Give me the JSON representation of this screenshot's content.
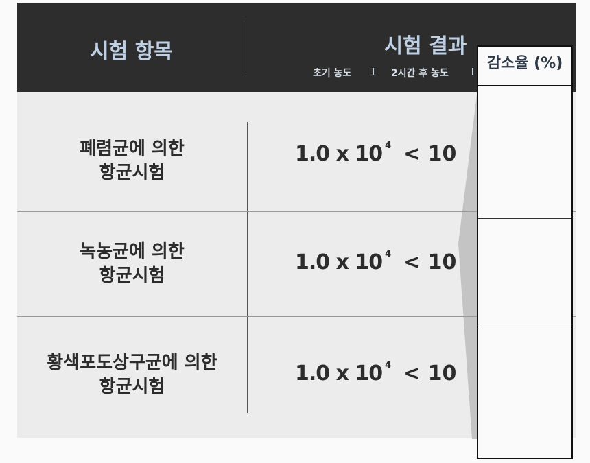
{
  "header": {
    "item_title": "시험 항목",
    "result_title": "시험 결과",
    "col_initial": "초기 농도",
    "col_after": "2시간 후 농도",
    "col_reduction": "감소율 (%)"
  },
  "rows": [
    {
      "line1": "폐렴균에 의한",
      "line2": "항균시험",
      "initial_base": "1.0 x 10",
      "initial_exp": "4",
      "after": "< 10"
    },
    {
      "line1": "녹농균에 의한",
      "line2": "항균시험",
      "initial_base": "1.0 x 10",
      "initial_exp": "4",
      "after": "< 10"
    },
    {
      "line1": "황색포도상구균에 의한",
      "line2": "항균시험",
      "initial_base": "1.0 x 10",
      "initial_exp": "4",
      "after": "< 10"
    }
  ]
}
